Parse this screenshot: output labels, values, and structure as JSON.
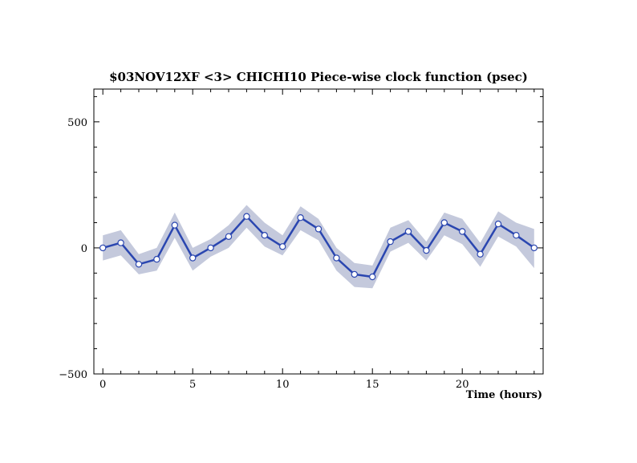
{
  "chart_data": {
    "type": "line",
    "title": "$03NOV12XF <3>  CHICHI10  Piece-wise clock function (psec)",
    "xlabel": "Time (hours)",
    "ylabel": "",
    "xlim": [
      -0.5,
      24.5
    ],
    "ylim": [
      -500,
      630
    ],
    "x_ticks": [
      0,
      5,
      10,
      15,
      20
    ],
    "y_ticks": [
      -500,
      0,
      500
    ],
    "x_tick_labels": [
      "0",
      "5",
      "10",
      "15",
      "20"
    ],
    "y_tick_labels": [
      "−500",
      "0",
      "500"
    ],
    "grid": false,
    "series": [
      {
        "x": [
          0,
          1,
          2,
          3,
          4,
          5,
          6,
          7,
          8,
          9,
          10,
          11,
          12,
          13,
          14,
          15,
          16,
          17,
          18,
          19,
          20,
          21,
          22,
          23,
          24
        ],
        "values": [
          0,
          20,
          -65,
          -45,
          90,
          -40,
          0,
          45,
          125,
          50,
          5,
          120,
          75,
          -40,
          -105,
          -115,
          25,
          65,
          -10,
          100,
          65,
          -25,
          95,
          50,
          0
        ],
        "band_upper": [
          50,
          70,
          -25,
          0,
          140,
          0,
          35,
          90,
          170,
          100,
          50,
          165,
          115,
          0,
          -60,
          -70,
          80,
          110,
          25,
          140,
          115,
          20,
          145,
          100,
          75
        ],
        "band_lower": [
          -50,
          -30,
          -105,
          -90,
          40,
          -90,
          -35,
          0,
          80,
          5,
          -30,
          70,
          30,
          -90,
          -155,
          -160,
          -15,
          20,
          -50,
          50,
          15,
          -75,
          45,
          5,
          -80
        ]
      }
    ],
    "colors": {
      "line": "#2a46b0",
      "band": "#c4c9dc",
      "marker_fill": "#ffffff",
      "axis": "#000000"
    }
  }
}
